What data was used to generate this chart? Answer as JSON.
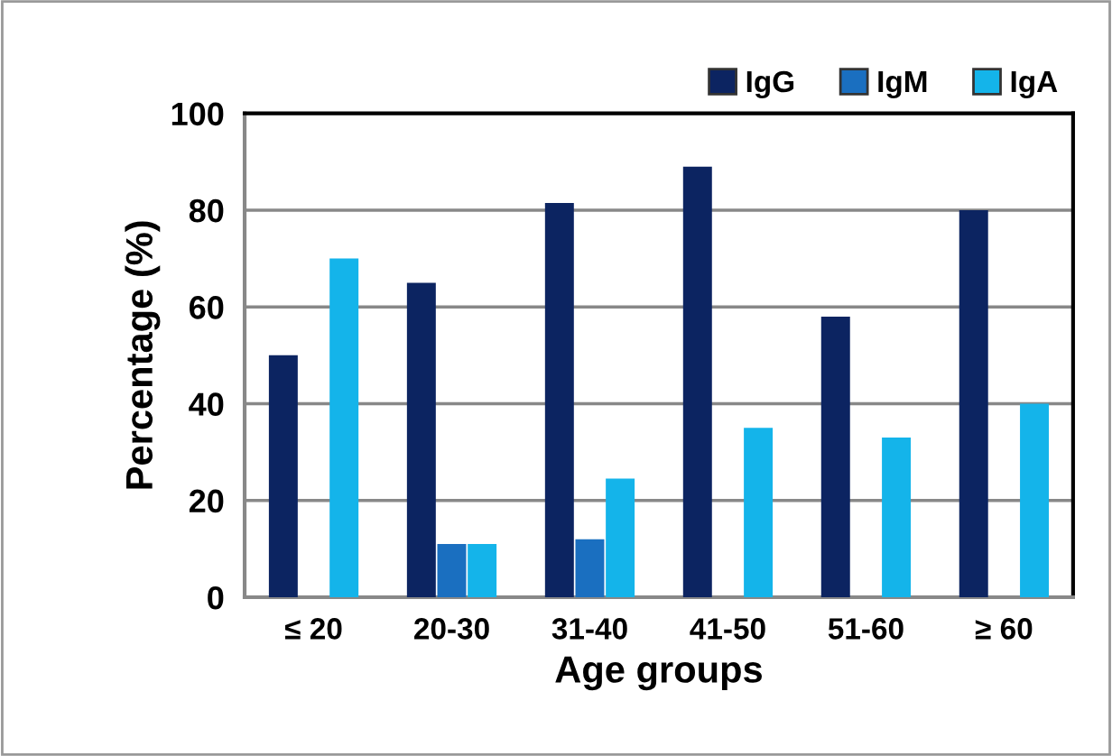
{
  "chart_data": {
    "type": "bar",
    "xlabel": "Age groups",
    "ylabel": "Percentage (%)",
    "categories": [
      "≤ 20",
      "20-30",
      "31-40",
      "41-50",
      "51-60",
      "≥ 60"
    ],
    "series": [
      {
        "name": "IgG",
        "color": "#0c2461",
        "values": [
          50,
          65,
          81.5,
          89,
          58,
          80
        ]
      },
      {
        "name": "IgM",
        "color": "#1a6fc0",
        "values": [
          0,
          11,
          12,
          0,
          0,
          0
        ]
      },
      {
        "name": "IgA",
        "color": "#14b4ea",
        "values": [
          70,
          11,
          24.5,
          35,
          33,
          40
        ]
      }
    ],
    "ylim": [
      0,
      100
    ],
    "yticks": [
      0,
      20,
      40,
      60,
      80,
      100
    ],
    "grid": "y",
    "legend": "top right"
  }
}
